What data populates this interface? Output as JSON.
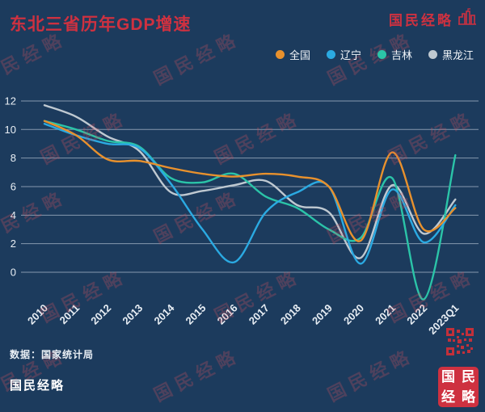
{
  "page": {
    "background": "#1C3B5D",
    "accent_red": "#CE3140",
    "grid_color": "rgba(222,232,240,0.55)",
    "axis_text_color": "#E8EEF4",
    "watermark_color": "rgba(207,84,94,0.28)"
  },
  "header": {
    "title": "东北三省历年GDP增速",
    "brand": "国民经略"
  },
  "legend": {
    "items": [
      {
        "label": "全国",
        "color": "#E8912D"
      },
      {
        "label": "辽宁",
        "color": "#2BAAE2"
      },
      {
        "label": "吉林",
        "color": "#2BC4A8"
      },
      {
        "label": "黑龙江",
        "color": "#BFC9D1"
      }
    ]
  },
  "chart_data": {
    "type": "line",
    "title": "东北三省历年GDP增速",
    "x": [
      "2010",
      "2011",
      "2012",
      "2013",
      "2014",
      "2015",
      "2016",
      "2017",
      "2018",
      "2019",
      "2020",
      "2021",
      "2022",
      "2023Q1"
    ],
    "series": [
      {
        "name": "全国",
        "color": "#E8912D",
        "values": [
          10.6,
          9.6,
          7.9,
          7.8,
          7.3,
          6.9,
          6.7,
          6.9,
          6.7,
          6.0,
          2.2,
          8.4,
          3.0,
          4.5
        ]
      },
      {
        "name": "辽宁",
        "color": "#2BAAE2",
        "values": [
          10.4,
          9.6,
          9.0,
          8.7,
          6.2,
          3.0,
          0.7,
          4.2,
          5.6,
          6.0,
          0.6,
          5.8,
          2.1,
          4.7
        ]
      },
      {
        "name": "吉林",
        "color": "#2BC4A8",
        "values": [
          10.6,
          10.0,
          9.2,
          8.8,
          6.6,
          6.3,
          6.9,
          5.3,
          4.5,
          3.0,
          2.4,
          6.6,
          -1.9,
          8.2
        ]
      },
      {
        "name": "黑龙江",
        "color": "#BFC9D1",
        "values": [
          11.7,
          10.9,
          9.5,
          8.5,
          5.6,
          5.7,
          6.1,
          6.4,
          4.7,
          4.2,
          1.0,
          6.1,
          2.7,
          5.1
        ]
      }
    ],
    "ylabel": "",
    "xlabel": "",
    "ylim": [
      -2.5,
      12.5
    ],
    "yticks": [
      0,
      2,
      4,
      6,
      8,
      10,
      12
    ],
    "grid": true,
    "legend_position": "top-right"
  },
  "watermark": {
    "text": "国民经略"
  },
  "footer": {
    "source": "数据：国家统计局",
    "brand": "国民经略"
  },
  "seal": {
    "text": "国民经略"
  }
}
